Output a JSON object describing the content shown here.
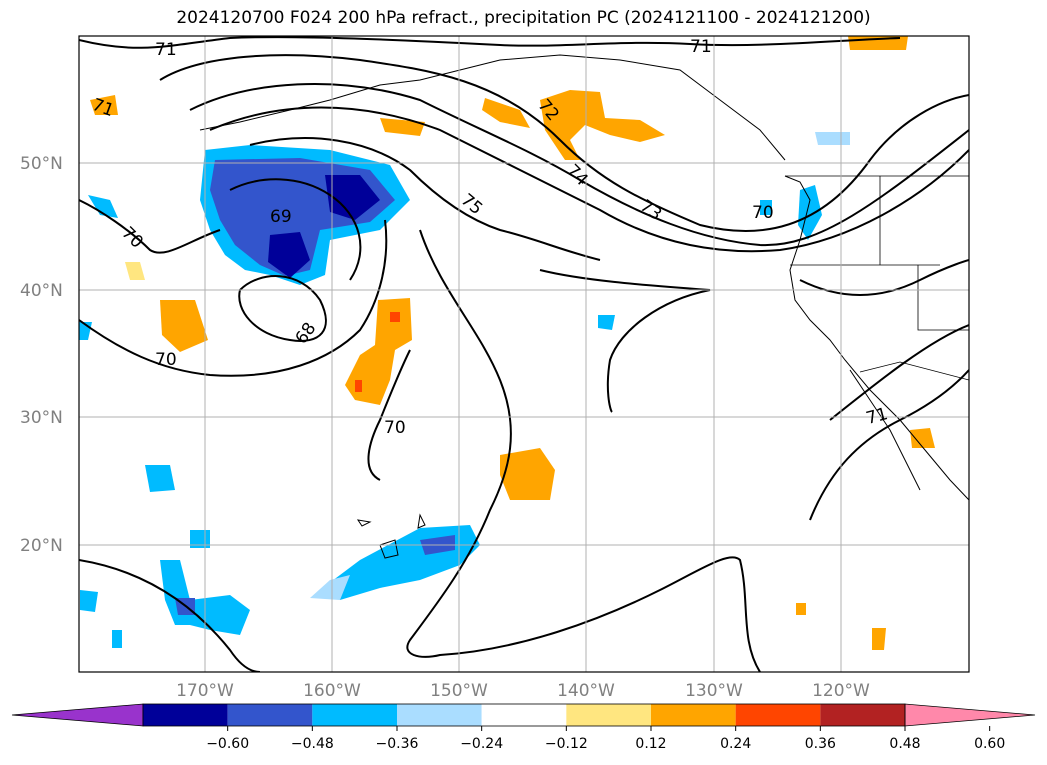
{
  "title": "2024120700 F024 200 hPa refract., precipitation PC (2024121100 - 2024121200)",
  "lon_labels": [
    "170°W",
    "160°W",
    "150°W",
    "140°W",
    "130°W",
    "120°W"
  ],
  "lat_labels": [
    "50°N",
    "40°N",
    "30°N",
    "20°N"
  ],
  "contour_labels": [
    "71",
    "71",
    "71",
    "72",
    "74",
    "73",
    "75",
    "70",
    "69",
    "70",
    "68",
    "70",
    "70",
    "71"
  ],
  "colorbar": {
    "ticks": [
      "−0.60",
      "−0.48",
      "−0.36",
      "−0.24",
      "−0.12",
      "0.12",
      "0.24",
      "0.36",
      "0.48",
      "0.60"
    ],
    "colors": [
      "#9933cc",
      "#000099",
      "#3355cc",
      "#00bbff",
      "#aaddff",
      "#ffffff",
      "#ffe680",
      "#ffa500",
      "#ff4500",
      "#b22222",
      "#ff88aa"
    ]
  }
}
